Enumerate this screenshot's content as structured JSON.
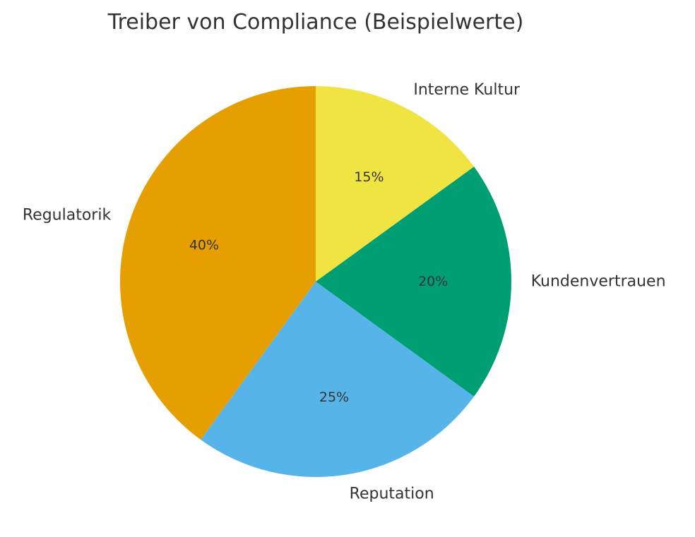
{
  "chart_data": {
    "type": "pie",
    "title": "Treiber von Compliance (Beispielwerte)",
    "start_angle_deg": 90,
    "direction": "counterclockwise",
    "slices": [
      {
        "label": "Regulatorik",
        "value": 40,
        "pct_label": "40%",
        "color": "#E69F00"
      },
      {
        "label": "Reputation",
        "value": 25,
        "pct_label": "25%",
        "color": "#56B4E9"
      },
      {
        "label": "Kundenvertrauen",
        "value": 20,
        "pct_label": "20%",
        "color": "#009E73"
      },
      {
        "label": "Interne Kultur",
        "value": 15,
        "pct_label": "15%",
        "color": "#F0E442"
      }
    ]
  }
}
